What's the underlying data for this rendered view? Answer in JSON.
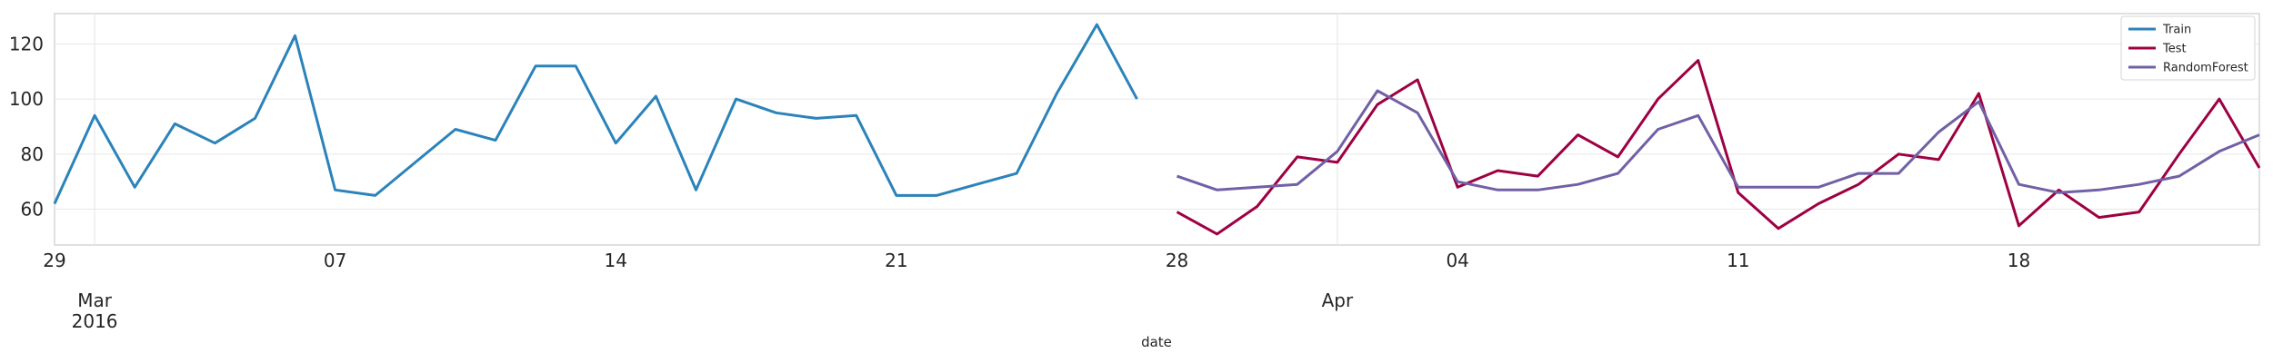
{
  "chart_data": {
    "type": "line",
    "xlabel": "date",
    "ylabel": "",
    "ylim": [
      47,
      131
    ],
    "xlim": [
      "2016-02-29",
      "2016-04-24"
    ],
    "grid": true,
    "legend_position": "top-right",
    "y_ticks": [
      {
        "value": 60,
        "label": "60"
      },
      {
        "value": 80,
        "label": "80"
      },
      {
        "value": 100,
        "label": "100"
      },
      {
        "value": 120,
        "label": "120"
      }
    ],
    "x_minor_ticks": [
      {
        "date": "2016-02-29",
        "label": "29"
      },
      {
        "date": "2016-03-07",
        "label": "07"
      },
      {
        "date": "2016-03-14",
        "label": "14"
      },
      {
        "date": "2016-03-21",
        "label": "21"
      },
      {
        "date": "2016-03-28",
        "label": "28"
      },
      {
        "date": "2016-04-04",
        "label": "04"
      },
      {
        "date": "2016-04-11",
        "label": "11"
      },
      {
        "date": "2016-04-18",
        "label": "18"
      }
    ],
    "x_major_ticks": [
      {
        "date": "2016-03-01",
        "label": "Mar",
        "sublabel": "2016"
      },
      {
        "date": "2016-04-01",
        "label": "Apr",
        "sublabel": ""
      }
    ],
    "series": [
      {
        "name": "Train",
        "color": "#2b83ba",
        "start": "2016-02-29",
        "values": [
          62,
          94,
          68,
          91,
          84,
          93,
          123,
          67,
          65,
          77,
          89,
          85,
          112,
          112,
          84,
          101,
          67,
          100,
          95,
          93,
          94,
          65,
          65,
          69,
          73,
          102,
          127,
          100
        ]
      },
      {
        "name": "Test",
        "color": "#9e0142",
        "start": "2016-03-28",
        "values": [
          59,
          51,
          61,
          79,
          77,
          98,
          107,
          68,
          74,
          72,
          87,
          79,
          100,
          114,
          66,
          53,
          62,
          69,
          80,
          78,
          102,
          54,
          67,
          57,
          59,
          80,
          100,
          75
        ]
      },
      {
        "name": "RandomForest",
        "color": "#7160a6",
        "start": "2016-03-28",
        "values": [
          72,
          67,
          68,
          69,
          81,
          103,
          95,
          70,
          67,
          67,
          69,
          73,
          89,
          94,
          68,
          68,
          68,
          73,
          73,
          88,
          99,
          69,
          66,
          67,
          69,
          72,
          81,
          87
        ]
      }
    ]
  }
}
